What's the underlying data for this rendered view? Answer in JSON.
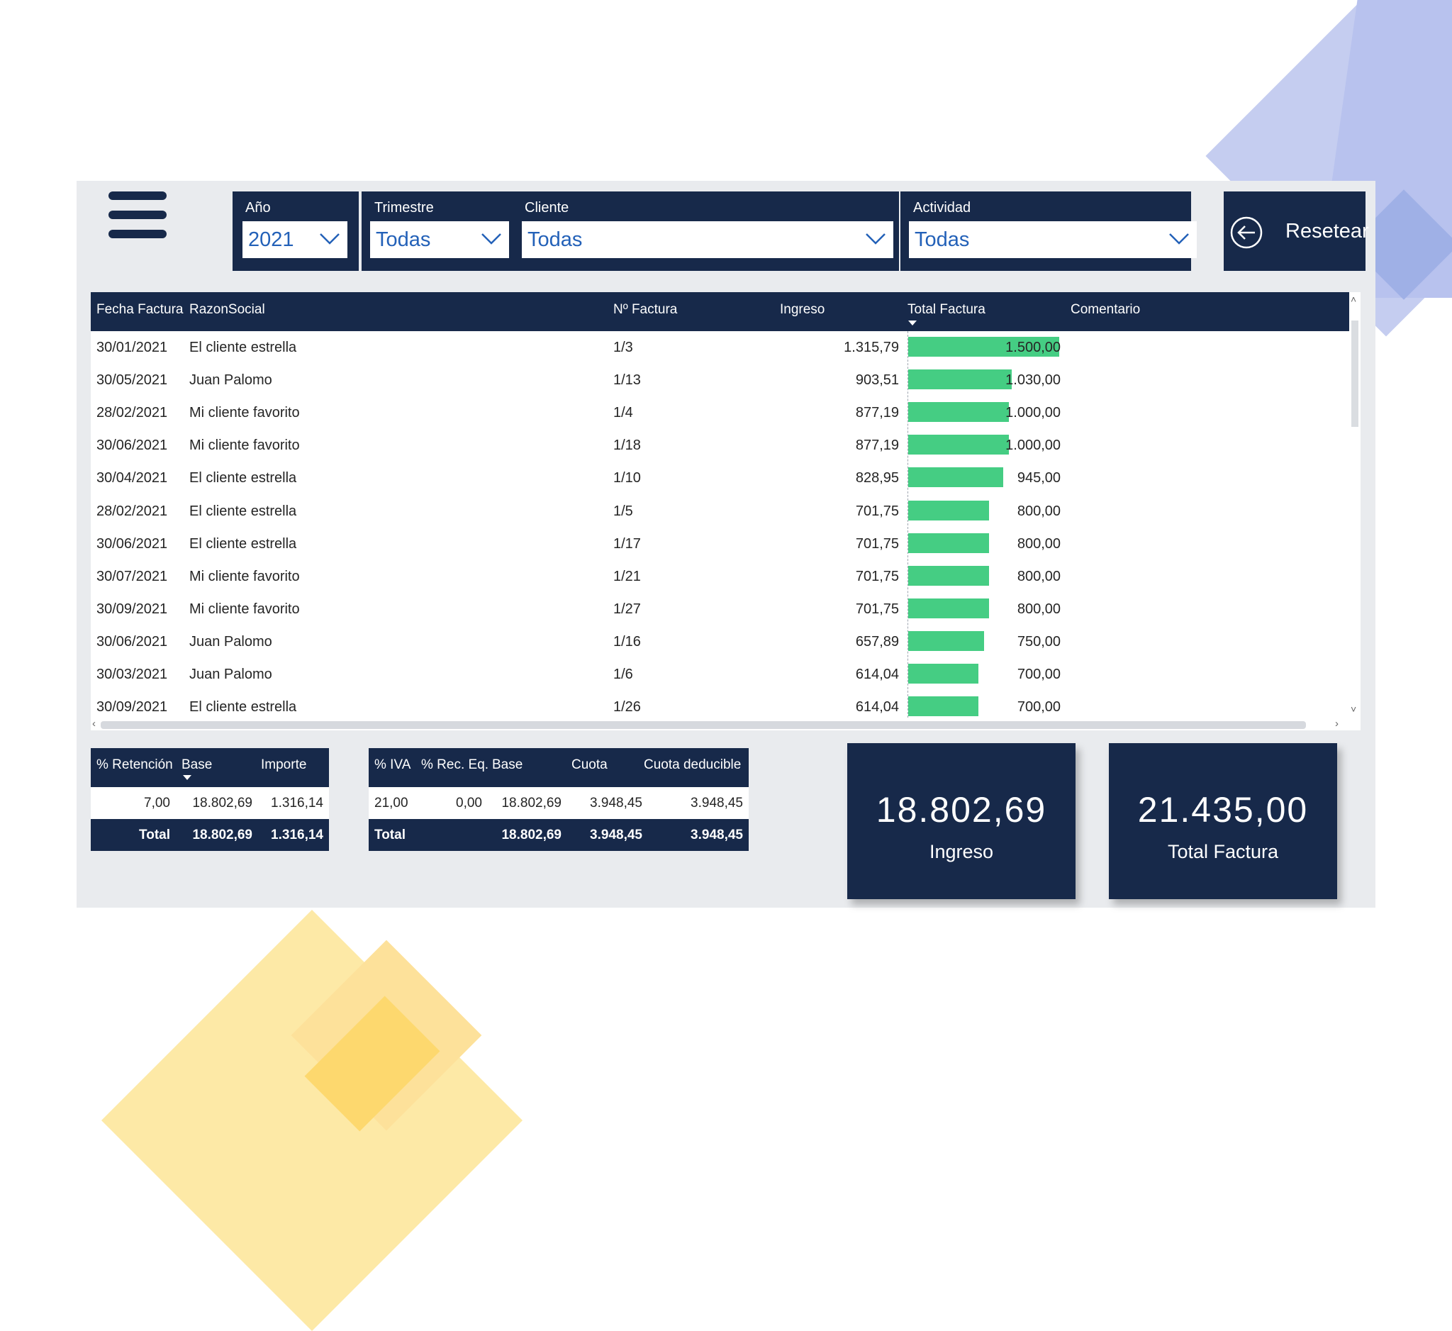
{
  "filters": {
    "year": {
      "label": "Año",
      "value": "2021"
    },
    "quarter": {
      "label": "Trimestre",
      "value": "Todas"
    },
    "client": {
      "label": "Cliente",
      "value": "Todas"
    },
    "activity": {
      "label": "Actividad",
      "value": "Todas"
    }
  },
  "reset_label": "Resetear",
  "invoices": {
    "columns": [
      "Fecha Factura",
      "RazonSocial",
      "Nº Factura",
      "Ingreso",
      "Total Factura",
      "Comentario"
    ],
    "bar_max": 1500,
    "rows": [
      {
        "fecha": "30/01/2021",
        "razon": "El cliente estrella",
        "num": "1/3",
        "ingreso": "1.315,79",
        "total": "1.500,00",
        "total_value": 1500
      },
      {
        "fecha": "30/05/2021",
        "razon": "Juan Palomo",
        "num": "1/13",
        "ingreso": "903,51",
        "total": "1.030,00",
        "total_value": 1030
      },
      {
        "fecha": "28/02/2021",
        "razon": "Mi cliente favorito",
        "num": "1/4",
        "ingreso": "877,19",
        "total": "1.000,00",
        "total_value": 1000
      },
      {
        "fecha": "30/06/2021",
        "razon": "Mi cliente favorito",
        "num": "1/18",
        "ingreso": "877,19",
        "total": "1.000,00",
        "total_value": 1000
      },
      {
        "fecha": "30/04/2021",
        "razon": "El cliente estrella",
        "num": "1/10",
        "ingreso": "828,95",
        "total": "945,00",
        "total_value": 945
      },
      {
        "fecha": "28/02/2021",
        "razon": "El cliente estrella",
        "num": "1/5",
        "ingreso": "701,75",
        "total": "800,00",
        "total_value": 800
      },
      {
        "fecha": "30/06/2021",
        "razon": "El cliente estrella",
        "num": "1/17",
        "ingreso": "701,75",
        "total": "800,00",
        "total_value": 800
      },
      {
        "fecha": "30/07/2021",
        "razon": "Mi cliente favorito",
        "num": "1/21",
        "ingreso": "701,75",
        "total": "800,00",
        "total_value": 800
      },
      {
        "fecha": "30/09/2021",
        "razon": "Mi cliente favorito",
        "num": "1/27",
        "ingreso": "701,75",
        "total": "800,00",
        "total_value": 800
      },
      {
        "fecha": "30/06/2021",
        "razon": "Juan Palomo",
        "num": "1/16",
        "ingreso": "657,89",
        "total": "750,00",
        "total_value": 750
      },
      {
        "fecha": "30/03/2021",
        "razon": "Juan Palomo",
        "num": "1/6",
        "ingreso": "614,04",
        "total": "700,00",
        "total_value": 700
      },
      {
        "fecha": "30/09/2021",
        "razon": "El cliente estrella",
        "num": "1/26",
        "ingreso": "614,04",
        "total": "700,00",
        "total_value": 700
      }
    ]
  },
  "retention": {
    "headers": [
      "% Retención",
      "Base",
      "Importe"
    ],
    "row": [
      "7,00",
      "18.802,69",
      "1.316,14"
    ],
    "total": [
      "Total",
      "18.802,69",
      "1.316,14"
    ]
  },
  "iva": {
    "headers": [
      "% IVA",
      "% Rec. Eq.",
      "Base",
      "Cuota",
      "Cuota deducible"
    ],
    "row": [
      "21,00",
      "0,00",
      "18.802,69",
      "3.948,45",
      "3.948,45"
    ],
    "total": [
      "Total",
      "18.802,69",
      "3.948,45",
      "3.948,45"
    ]
  },
  "kpis": {
    "ingreso": {
      "value": "18.802,69",
      "label": "Ingreso"
    },
    "total_factura": {
      "value": "21.435,00",
      "label": "Total Factura"
    }
  },
  "colors": {
    "navy": "#17294a",
    "bar": "#45cd83",
    "dropdown_text": "#2361b8"
  }
}
